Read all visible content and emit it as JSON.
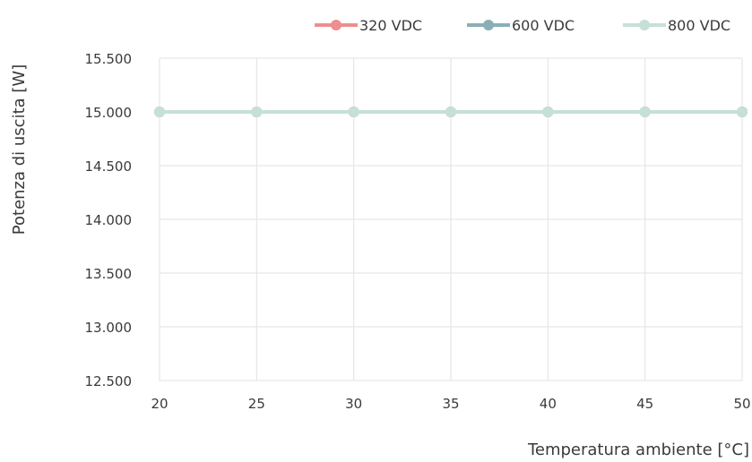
{
  "chart_data": {
    "type": "line",
    "title": "",
    "xlabel": "Temperatura ambiente [°C]",
    "ylabel": "Potenza di uscita [W]",
    "x": [
      20,
      25,
      30,
      35,
      40,
      45,
      50
    ],
    "x_tick_labels": [
      "20",
      "25",
      "30",
      "35",
      "40",
      "45",
      "50"
    ],
    "xlim": [
      20,
      50
    ],
    "ylim": [
      12500,
      15500
    ],
    "y_ticks": [
      12500,
      13000,
      13500,
      14000,
      14500,
      15000,
      15500
    ],
    "y_tick_labels": [
      "12.500",
      "13.000",
      "13.500",
      "14.000",
      "14.500",
      "15.000",
      "15.500"
    ],
    "grid": true,
    "legend_position": "top-right",
    "series": [
      {
        "name": "320 VDC",
        "color": "#ee8e8e",
        "values": [
          15000,
          15000,
          15000,
          15000,
          15000,
          15000,
          15000
        ]
      },
      {
        "name": "600 VDC",
        "color": "#8aaeb7",
        "values": [
          15000,
          15000,
          15000,
          15000,
          15000,
          15000,
          15000
        ]
      },
      {
        "name": "800 VDC",
        "color": "#c6e0d6",
        "values": [
          15000,
          15000,
          15000,
          15000,
          15000,
          15000,
          15000
        ]
      }
    ]
  }
}
